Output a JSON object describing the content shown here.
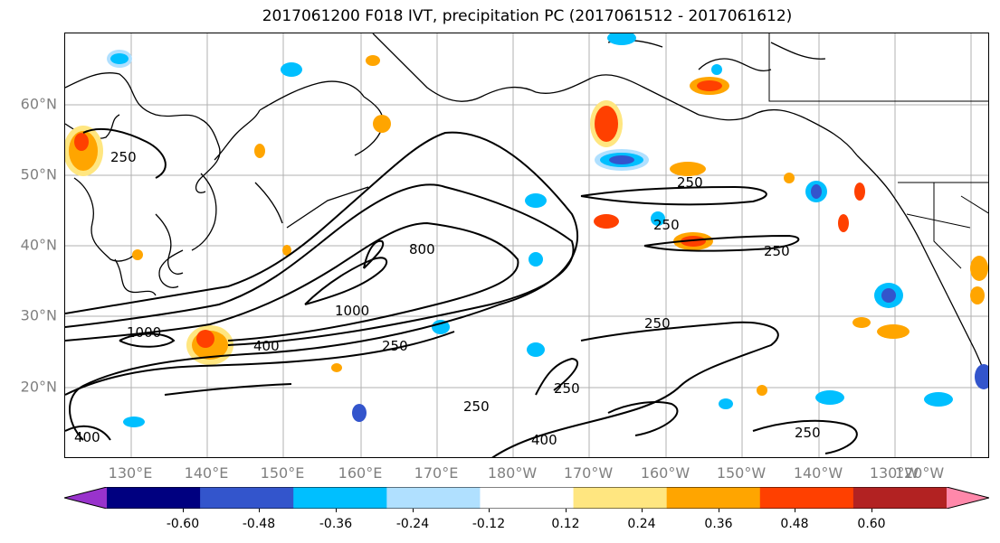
{
  "title": "2017061200 F018 IVT, precipitation PC (2017061512 - 2017061612)",
  "lat_labels": [
    "60°N",
    "50°N",
    "40°N",
    "30°N",
    "20°N"
  ],
  "lon_labels": [
    "130°E",
    "140°E",
    "150°E",
    "160°E",
    "170°E",
    "180°W",
    "170°W",
    "160°W",
    "150°W",
    "140°W",
    "130°W",
    "120°W"
  ],
  "contour_labels": [
    "250",
    "250",
    "250",
    "250",
    "800",
    "1000",
    "1000",
    "400",
    "250",
    "250",
    "250",
    "250",
    "400",
    "250",
    "400"
  ],
  "colorbar": {
    "colors": [
      "#9933cc",
      "#000080",
      "#3355cc",
      "#00bfff",
      "#b0e0ff",
      "#ffffff",
      "#ffe680",
      "#ffa500",
      "#ff4000",
      "#b22222",
      "#ff88aa"
    ],
    "tick_labels": [
      "-0.60",
      "-0.48",
      "-0.36",
      "-0.24",
      "-0.12",
      "0.12",
      "0.24",
      "0.36",
      "0.48",
      "0.60"
    ]
  }
}
